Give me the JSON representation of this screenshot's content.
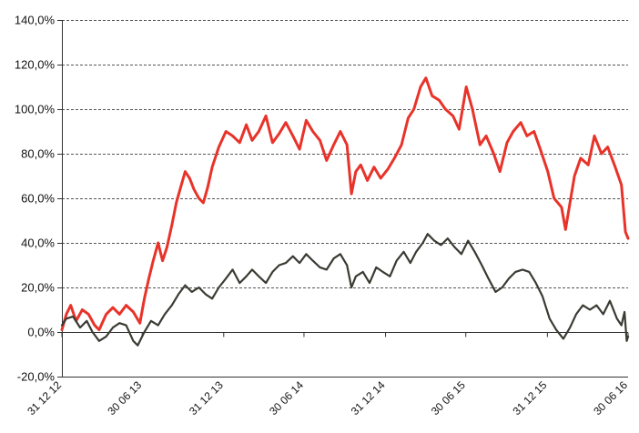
{
  "chart_data": {
    "type": "line",
    "title": "",
    "xlabel": "",
    "ylabel": "",
    "grid": true,
    "legend": "none",
    "y_range": [
      -20,
      140
    ],
    "y_ticks": [
      {
        "value": 140,
        "label": "140,0%"
      },
      {
        "value": 120,
        "label": "120,0%"
      },
      {
        "value": 100,
        "label": "100,0%"
      },
      {
        "value": 80,
        "label": "80,0%"
      },
      {
        "value": 60,
        "label": "60,0%"
      },
      {
        "value": 40,
        "label": "40,0%"
      },
      {
        "value": 20,
        "label": "20,0%"
      },
      {
        "value": 0,
        "label": "0,0%"
      },
      {
        "value": -20,
        "label": "-20,0%"
      }
    ],
    "x_range": [
      "2012-12-31",
      "2016-06-30"
    ],
    "x_ticks": [
      {
        "date": "2012-12-31",
        "label": "31 12 12"
      },
      {
        "date": "2013-06-30",
        "label": "30 06 13"
      },
      {
        "date": "2013-12-31",
        "label": "31 12 13"
      },
      {
        "date": "2014-06-30",
        "label": "30 06 14"
      },
      {
        "date": "2014-12-31",
        "label": "31 12 14"
      },
      {
        "date": "2015-06-30",
        "label": "30 06 15"
      },
      {
        "date": "2015-12-31",
        "label": "31 12 15"
      },
      {
        "date": "2016-06-30",
        "label": "30 06 16"
      }
    ],
    "series": [
      {
        "color": "#e8332a",
        "points": [
          {
            "x": "2012-12-31",
            "y": 1
          },
          {
            "x": "2013-01-10",
            "y": 8
          },
          {
            "x": "2013-01-20",
            "y": 12
          },
          {
            "x": "2013-02-01",
            "y": 5
          },
          {
            "x": "2013-02-15",
            "y": 10
          },
          {
            "x": "2013-03-01",
            "y": 8
          },
          {
            "x": "2013-03-15",
            "y": 3
          },
          {
            "x": "2013-03-25",
            "y": 1
          },
          {
            "x": "2013-04-10",
            "y": 8
          },
          {
            "x": "2013-04-25",
            "y": 11
          },
          {
            "x": "2013-05-10",
            "y": 8
          },
          {
            "x": "2013-05-25",
            "y": 12
          },
          {
            "x": "2013-06-10",
            "y": 9
          },
          {
            "x": "2013-06-25",
            "y": 4
          },
          {
            "x": "2013-07-05",
            "y": 15
          },
          {
            "x": "2013-07-15",
            "y": 24
          },
          {
            "x": "2013-07-25",
            "y": 32
          },
          {
            "x": "2013-08-05",
            "y": 40
          },
          {
            "x": "2013-08-15",
            "y": 32
          },
          {
            "x": "2013-08-25",
            "y": 38
          },
          {
            "x": "2013-09-05",
            "y": 48
          },
          {
            "x": "2013-09-15",
            "y": 58
          },
          {
            "x": "2013-09-25",
            "y": 65
          },
          {
            "x": "2013-10-05",
            "y": 72
          },
          {
            "x": "2013-10-15",
            "y": 69
          },
          {
            "x": "2013-10-25",
            "y": 64
          },
          {
            "x": "2013-11-05",
            "y": 60
          },
          {
            "x": "2013-11-15",
            "y": 58
          },
          {
            "x": "2013-11-25",
            "y": 65
          },
          {
            "x": "2013-12-05",
            "y": 74
          },
          {
            "x": "2013-12-20",
            "y": 83
          },
          {
            "x": "2014-01-05",
            "y": 90
          },
          {
            "x": "2014-01-20",
            "y": 88
          },
          {
            "x": "2014-02-05",
            "y": 85
          },
          {
            "x": "2014-02-20",
            "y": 93
          },
          {
            "x": "2014-03-05",
            "y": 86
          },
          {
            "x": "2014-03-20",
            "y": 90
          },
          {
            "x": "2014-04-05",
            "y": 97
          },
          {
            "x": "2014-04-20",
            "y": 85
          },
          {
            "x": "2014-05-05",
            "y": 89
          },
          {
            "x": "2014-05-20",
            "y": 94
          },
          {
            "x": "2014-06-05",
            "y": 88
          },
          {
            "x": "2014-06-20",
            "y": 82
          },
          {
            "x": "2014-07-05",
            "y": 95
          },
          {
            "x": "2014-07-20",
            "y": 90
          },
          {
            "x": "2014-08-05",
            "y": 86
          },
          {
            "x": "2014-08-20",
            "y": 77
          },
          {
            "x": "2014-09-05",
            "y": 84
          },
          {
            "x": "2014-09-20",
            "y": 90
          },
          {
            "x": "2014-10-05",
            "y": 84
          },
          {
            "x": "2014-10-15",
            "y": 62
          },
          {
            "x": "2014-10-25",
            "y": 72
          },
          {
            "x": "2014-11-05",
            "y": 75
          },
          {
            "x": "2014-11-20",
            "y": 68
          },
          {
            "x": "2014-12-05",
            "y": 74
          },
          {
            "x": "2014-12-20",
            "y": 69
          },
          {
            "x": "2015-01-05",
            "y": 73
          },
          {
            "x": "2015-01-20",
            "y": 78
          },
          {
            "x": "2015-02-05",
            "y": 84
          },
          {
            "x": "2015-02-20",
            "y": 96
          },
          {
            "x": "2015-03-05",
            "y": 100
          },
          {
            "x": "2015-03-20",
            "y": 110
          },
          {
            "x": "2015-04-01",
            "y": 114
          },
          {
            "x": "2015-04-15",
            "y": 106
          },
          {
            "x": "2015-05-01",
            "y": 104
          },
          {
            "x": "2015-05-15",
            "y": 100
          },
          {
            "x": "2015-06-01",
            "y": 97
          },
          {
            "x": "2015-06-15",
            "y": 91
          },
          {
            "x": "2015-07-01",
            "y": 110
          },
          {
            "x": "2015-07-15",
            "y": 100
          },
          {
            "x": "2015-08-01",
            "y": 84
          },
          {
            "x": "2015-08-15",
            "y": 88
          },
          {
            "x": "2015-09-01",
            "y": 80
          },
          {
            "x": "2015-09-15",
            "y": 72
          },
          {
            "x": "2015-10-01",
            "y": 85
          },
          {
            "x": "2015-10-15",
            "y": 90
          },
          {
            "x": "2015-11-01",
            "y": 94
          },
          {
            "x": "2015-11-15",
            "y": 88
          },
          {
            "x": "2015-12-01",
            "y": 90
          },
          {
            "x": "2015-12-15",
            "y": 82
          },
          {
            "x": "2016-01-01",
            "y": 72
          },
          {
            "x": "2016-01-15",
            "y": 60
          },
          {
            "x": "2016-02-01",
            "y": 56
          },
          {
            "x": "2016-02-10",
            "y": 46
          },
          {
            "x": "2016-02-20",
            "y": 58
          },
          {
            "x": "2016-03-01",
            "y": 70
          },
          {
            "x": "2016-03-15",
            "y": 78
          },
          {
            "x": "2016-04-01",
            "y": 75
          },
          {
            "x": "2016-04-15",
            "y": 88
          },
          {
            "x": "2016-05-01",
            "y": 80
          },
          {
            "x": "2016-05-15",
            "y": 83
          },
          {
            "x": "2016-06-01",
            "y": 74
          },
          {
            "x": "2016-06-15",
            "y": 66
          },
          {
            "x": "2016-06-24",
            "y": 45
          },
          {
            "x": "2016-06-30",
            "y": 42
          }
        ]
      },
      {
        "color": "#3b3b34",
        "points": [
          {
            "x": "2012-12-31",
            "y": 3
          },
          {
            "x": "2013-01-10",
            "y": 6
          },
          {
            "x": "2013-01-25",
            "y": 7
          },
          {
            "x": "2013-02-10",
            "y": 2
          },
          {
            "x": "2013-02-25",
            "y": 5
          },
          {
            "x": "2013-03-10",
            "y": 0
          },
          {
            "x": "2013-03-25",
            "y": -4
          },
          {
            "x": "2013-04-10",
            "y": -2
          },
          {
            "x": "2013-04-25",
            "y": 2
          },
          {
            "x": "2013-05-10",
            "y": 4
          },
          {
            "x": "2013-05-25",
            "y": 3
          },
          {
            "x": "2013-06-10",
            "y": -4
          },
          {
            "x": "2013-06-20",
            "y": -6
          },
          {
            "x": "2013-07-05",
            "y": 0
          },
          {
            "x": "2013-07-20",
            "y": 5
          },
          {
            "x": "2013-08-05",
            "y": 3
          },
          {
            "x": "2013-08-20",
            "y": 8
          },
          {
            "x": "2013-09-05",
            "y": 12
          },
          {
            "x": "2013-09-20",
            "y": 17
          },
          {
            "x": "2013-10-05",
            "y": 21
          },
          {
            "x": "2013-10-20",
            "y": 18
          },
          {
            "x": "2013-11-05",
            "y": 20
          },
          {
            "x": "2013-11-20",
            "y": 17
          },
          {
            "x": "2013-12-05",
            "y": 15
          },
          {
            "x": "2013-12-20",
            "y": 20
          },
          {
            "x": "2014-01-05",
            "y": 24
          },
          {
            "x": "2014-01-20",
            "y": 28
          },
          {
            "x": "2014-02-05",
            "y": 22
          },
          {
            "x": "2014-02-20",
            "y": 25
          },
          {
            "x": "2014-03-05",
            "y": 28
          },
          {
            "x": "2014-03-20",
            "y": 25
          },
          {
            "x": "2014-04-05",
            "y": 22
          },
          {
            "x": "2014-04-20",
            "y": 27
          },
          {
            "x": "2014-05-05",
            "y": 30
          },
          {
            "x": "2014-05-20",
            "y": 31
          },
          {
            "x": "2014-06-05",
            "y": 34
          },
          {
            "x": "2014-06-20",
            "y": 31
          },
          {
            "x": "2014-07-05",
            "y": 35
          },
          {
            "x": "2014-07-20",
            "y": 32
          },
          {
            "x": "2014-08-05",
            "y": 29
          },
          {
            "x": "2014-08-20",
            "y": 28
          },
          {
            "x": "2014-09-05",
            "y": 33
          },
          {
            "x": "2014-09-20",
            "y": 35
          },
          {
            "x": "2014-10-05",
            "y": 30
          },
          {
            "x": "2014-10-15",
            "y": 20
          },
          {
            "x": "2014-10-25",
            "y": 25
          },
          {
            "x": "2014-11-10",
            "y": 27
          },
          {
            "x": "2014-11-25",
            "y": 22
          },
          {
            "x": "2014-12-10",
            "y": 29
          },
          {
            "x": "2014-12-25",
            "y": 27
          },
          {
            "x": "2015-01-10",
            "y": 25
          },
          {
            "x": "2015-01-25",
            "y": 32
          },
          {
            "x": "2015-02-10",
            "y": 36
          },
          {
            "x": "2015-02-25",
            "y": 31
          },
          {
            "x": "2015-03-10",
            "y": 36
          },
          {
            "x": "2015-03-25",
            "y": 40
          },
          {
            "x": "2015-04-05",
            "y": 44
          },
          {
            "x": "2015-04-20",
            "y": 41
          },
          {
            "x": "2015-05-05",
            "y": 39
          },
          {
            "x": "2015-05-20",
            "y": 42
          },
          {
            "x": "2015-06-05",
            "y": 38
          },
          {
            "x": "2015-06-20",
            "y": 35
          },
          {
            "x": "2015-07-05",
            "y": 41
          },
          {
            "x": "2015-07-20",
            "y": 36
          },
          {
            "x": "2015-08-05",
            "y": 30
          },
          {
            "x": "2015-08-20",
            "y": 24
          },
          {
            "x": "2015-09-05",
            "y": 18
          },
          {
            "x": "2015-09-20",
            "y": 20
          },
          {
            "x": "2015-10-05",
            "y": 24
          },
          {
            "x": "2015-10-20",
            "y": 27
          },
          {
            "x": "2015-11-05",
            "y": 28
          },
          {
            "x": "2015-11-20",
            "y": 27
          },
          {
            "x": "2015-12-05",
            "y": 22
          },
          {
            "x": "2015-12-20",
            "y": 16
          },
          {
            "x": "2016-01-05",
            "y": 6
          },
          {
            "x": "2016-01-20",
            "y": 1
          },
          {
            "x": "2016-02-05",
            "y": -3
          },
          {
            "x": "2016-02-20",
            "y": 2
          },
          {
            "x": "2016-03-05",
            "y": 8
          },
          {
            "x": "2016-03-20",
            "y": 12
          },
          {
            "x": "2016-04-05",
            "y": 10
          },
          {
            "x": "2016-04-20",
            "y": 12
          },
          {
            "x": "2016-05-05",
            "y": 8
          },
          {
            "x": "2016-05-20",
            "y": 14
          },
          {
            "x": "2016-06-05",
            "y": 6
          },
          {
            "x": "2016-06-15",
            "y": 3
          },
          {
            "x": "2016-06-22",
            "y": 9
          },
          {
            "x": "2016-06-27",
            "y": -4
          },
          {
            "x": "2016-06-30",
            "y": -2
          }
        ]
      }
    ]
  }
}
